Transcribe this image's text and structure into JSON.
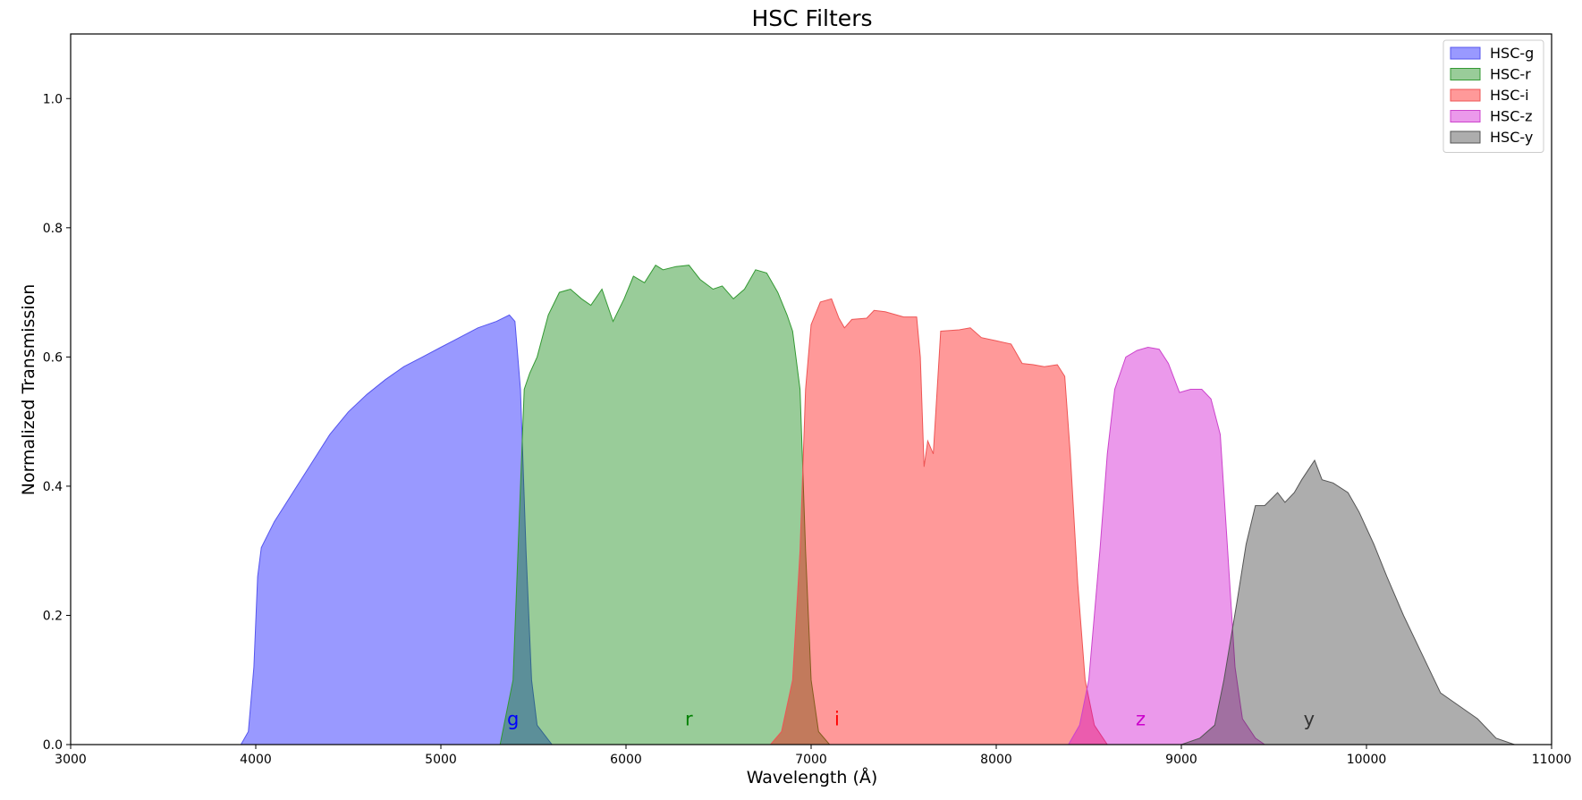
{
  "chart_data": {
    "type": "area",
    "title": "HSC Filters",
    "xlabel": "Wavelength (Å)",
    "ylabel": "Normalized Transmission",
    "xlim": [
      3000,
      11000
    ],
    "ylim": [
      0,
      1.1
    ],
    "xticks": [
      3000,
      4000,
      5000,
      6000,
      7000,
      8000,
      9000,
      10000,
      11000
    ],
    "yticks": [
      0.0,
      0.2,
      0.4,
      0.6,
      0.8,
      1.0
    ],
    "xtick_labels": [
      "3000",
      "4000",
      "5000",
      "6000",
      "7000",
      "8000",
      "9000",
      "10000",
      "11000"
    ],
    "ytick_labels": [
      "0.0",
      "0.2",
      "0.4",
      "0.6",
      "0.8",
      "1.0"
    ],
    "grid": false,
    "legend_position": "top-right",
    "series": [
      {
        "name": "HSC-g",
        "label": "g",
        "label_x": 5390,
        "color": "#0000ff",
        "edge": "#5555ee",
        "points": [
          [
            3920,
            0
          ],
          [
            3960,
            0.02
          ],
          [
            3990,
            0.12
          ],
          [
            4010,
            0.26
          ],
          [
            4030,
            0.305
          ],
          [
            4100,
            0.345
          ],
          [
            4200,
            0.39
          ],
          [
            4300,
            0.435
          ],
          [
            4400,
            0.48
          ],
          [
            4500,
            0.515
          ],
          [
            4600,
            0.542
          ],
          [
            4700,
            0.565
          ],
          [
            4800,
            0.585
          ],
          [
            4900,
            0.6
          ],
          [
            5000,
            0.615
          ],
          [
            5100,
            0.63
          ],
          [
            5200,
            0.645
          ],
          [
            5300,
            0.655
          ],
          [
            5370,
            0.665
          ],
          [
            5400,
            0.655
          ],
          [
            5430,
            0.55
          ],
          [
            5460,
            0.3
          ],
          [
            5490,
            0.1
          ],
          [
            5520,
            0.03
          ],
          [
            5600,
            0
          ]
        ]
      },
      {
        "name": "HSC-r",
        "label": "r",
        "label_x": 6340,
        "color": "#008000",
        "edge": "#339933",
        "points": [
          [
            5320,
            0
          ],
          [
            5390,
            0.1
          ],
          [
            5430,
            0.4
          ],
          [
            5450,
            0.55
          ],
          [
            5480,
            0.575
          ],
          [
            5520,
            0.6
          ],
          [
            5580,
            0.665
          ],
          [
            5640,
            0.7
          ],
          [
            5700,
            0.705
          ],
          [
            5760,
            0.69
          ],
          [
            5810,
            0.68
          ],
          [
            5870,
            0.705
          ],
          [
            5930,
            0.655
          ],
          [
            5990,
            0.69
          ],
          [
            6040,
            0.725
          ],
          [
            6100,
            0.715
          ],
          [
            6160,
            0.742
          ],
          [
            6200,
            0.735
          ],
          [
            6270,
            0.74
          ],
          [
            6340,
            0.742
          ],
          [
            6400,
            0.72
          ],
          [
            6470,
            0.705
          ],
          [
            6520,
            0.71
          ],
          [
            6580,
            0.69
          ],
          [
            6640,
            0.705
          ],
          [
            6700,
            0.735
          ],
          [
            6760,
            0.73
          ],
          [
            6820,
            0.7
          ],
          [
            6870,
            0.665
          ],
          [
            6900,
            0.64
          ],
          [
            6940,
            0.55
          ],
          [
            6970,
            0.3
          ],
          [
            7000,
            0.1
          ],
          [
            7040,
            0.02
          ],
          [
            7100,
            0
          ]
        ]
      },
      {
        "name": "HSC-i",
        "label": "i",
        "label_x": 7140,
        "color": "#ff0000",
        "edge": "#ee5555",
        "points": [
          [
            6780,
            0
          ],
          [
            6840,
            0.02
          ],
          [
            6900,
            0.1
          ],
          [
            6940,
            0.3
          ],
          [
            6970,
            0.55
          ],
          [
            7000,
            0.65
          ],
          [
            7050,
            0.685
          ],
          [
            7110,
            0.69
          ],
          [
            7150,
            0.66
          ],
          [
            7180,
            0.645
          ],
          [
            7220,
            0.658
          ],
          [
            7300,
            0.66
          ],
          [
            7340,
            0.672
          ],
          [
            7400,
            0.67
          ],
          [
            7500,
            0.662
          ],
          [
            7570,
            0.662
          ],
          [
            7590,
            0.6
          ],
          [
            7610,
            0.43
          ],
          [
            7630,
            0.47
          ],
          [
            7660,
            0.45
          ],
          [
            7700,
            0.64
          ],
          [
            7800,
            0.642
          ],
          [
            7860,
            0.645
          ],
          [
            7920,
            0.63
          ],
          [
            8000,
            0.625
          ],
          [
            8080,
            0.62
          ],
          [
            8140,
            0.59
          ],
          [
            8200,
            0.588
          ],
          [
            8260,
            0.585
          ],
          [
            8330,
            0.588
          ],
          [
            8370,
            0.57
          ],
          [
            8400,
            0.45
          ],
          [
            8440,
            0.25
          ],
          [
            8480,
            0.1
          ],
          [
            8530,
            0.03
          ],
          [
            8600,
            0
          ]
        ]
      },
      {
        "name": "HSC-z",
        "label": "z",
        "label_x": 8780,
        "color": "#cc00cc",
        "edge": "#cc44cc",
        "points": [
          [
            8390,
            0
          ],
          [
            8450,
            0.03
          ],
          [
            8500,
            0.1
          ],
          [
            8560,
            0.3
          ],
          [
            8600,
            0.45
          ],
          [
            8640,
            0.55
          ],
          [
            8700,
            0.6
          ],
          [
            8760,
            0.61
          ],
          [
            8820,
            0.615
          ],
          [
            8880,
            0.612
          ],
          [
            8930,
            0.59
          ],
          [
            8990,
            0.545
          ],
          [
            9050,
            0.55
          ],
          [
            9110,
            0.55
          ],
          [
            9160,
            0.535
          ],
          [
            9210,
            0.48
          ],
          [
            9250,
            0.3
          ],
          [
            9290,
            0.12
          ],
          [
            9330,
            0.04
          ],
          [
            9400,
            0.01
          ],
          [
            9450,
            0
          ]
        ]
      },
      {
        "name": "HSC-y",
        "label": "y",
        "label_x": 9690,
        "color": "#333333",
        "edge": "#555555",
        "points": [
          [
            9000,
            0
          ],
          [
            9100,
            0.01
          ],
          [
            9180,
            0.03
          ],
          [
            9230,
            0.1
          ],
          [
            9300,
            0.22
          ],
          [
            9350,
            0.31
          ],
          [
            9400,
            0.37
          ],
          [
            9450,
            0.37
          ],
          [
            9520,
            0.39
          ],
          [
            9560,
            0.375
          ],
          [
            9610,
            0.39
          ],
          [
            9650,
            0.41
          ],
          [
            9720,
            0.44
          ],
          [
            9760,
            0.41
          ],
          [
            9820,
            0.405
          ],
          [
            9900,
            0.39
          ],
          [
            9960,
            0.36
          ],
          [
            10040,
            0.31
          ],
          [
            10110,
            0.26
          ],
          [
            10200,
            0.2
          ],
          [
            10300,
            0.14
          ],
          [
            10400,
            0.08
          ],
          [
            10500,
            0.06
          ],
          [
            10600,
            0.04
          ],
          [
            10700,
            0.01
          ],
          [
            10800,
            0
          ]
        ]
      }
    ]
  }
}
